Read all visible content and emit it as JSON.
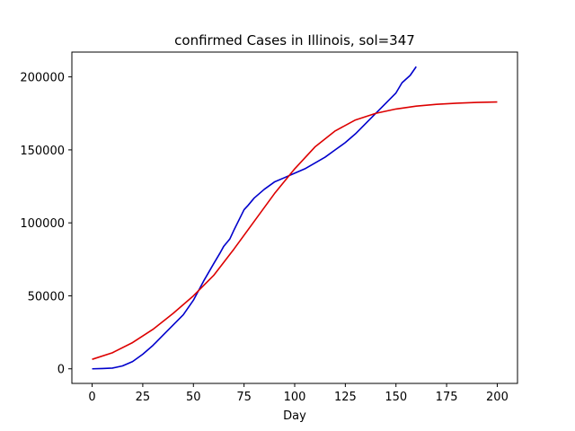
{
  "chart_data": {
    "type": "line",
    "title": "confirmed Cases in Illinois, sol=347",
    "xlabel": "Day",
    "ylabel": "",
    "xlim": [
      -10,
      210
    ],
    "ylim": [
      -10000,
      217000
    ],
    "xticks": [
      0,
      25,
      50,
      75,
      100,
      125,
      150,
      175,
      200
    ],
    "yticks": [
      0,
      50000,
      100000,
      150000,
      200000
    ],
    "grid": false,
    "series": [
      {
        "color": "#0000cc",
        "x": [
          0,
          5,
          10,
          15,
          20,
          25,
          30,
          35,
          40,
          45,
          50,
          55,
          60,
          63,
          65,
          68,
          70,
          75,
          77,
          80,
          85,
          90,
          95,
          100,
          105,
          110,
          115,
          120,
          125,
          130,
          135,
          140,
          145,
          150,
          153,
          157,
          160
        ],
        "y": [
          0,
          200,
          500,
          2000,
          5000,
          10000,
          16000,
          23000,
          30000,
          37000,
          47000,
          60000,
          72000,
          79000,
          84000,
          89000,
          95000,
          109000,
          112000,
          117000,
          123000,
          128000,
          131000,
          134000,
          137000,
          141000,
          145000,
          150000,
          155000,
          161000,
          168000,
          175000,
          182000,
          189000,
          196000,
          201000,
          207000
        ]
      },
      {
        "color": "#dd0000",
        "x": [
          0,
          10,
          20,
          30,
          40,
          50,
          60,
          70,
          80,
          90,
          100,
          110,
          120,
          130,
          140,
          150,
          160,
          170,
          180,
          190,
          200
        ],
        "y": [
          6500,
          11000,
          18000,
          27000,
          38000,
          50000,
          64000,
          82000,
          101000,
          120000,
          137000,
          152000,
          163000,
          170500,
          175000,
          178000,
          180000,
          181200,
          182000,
          182500,
          182800
        ]
      }
    ]
  }
}
